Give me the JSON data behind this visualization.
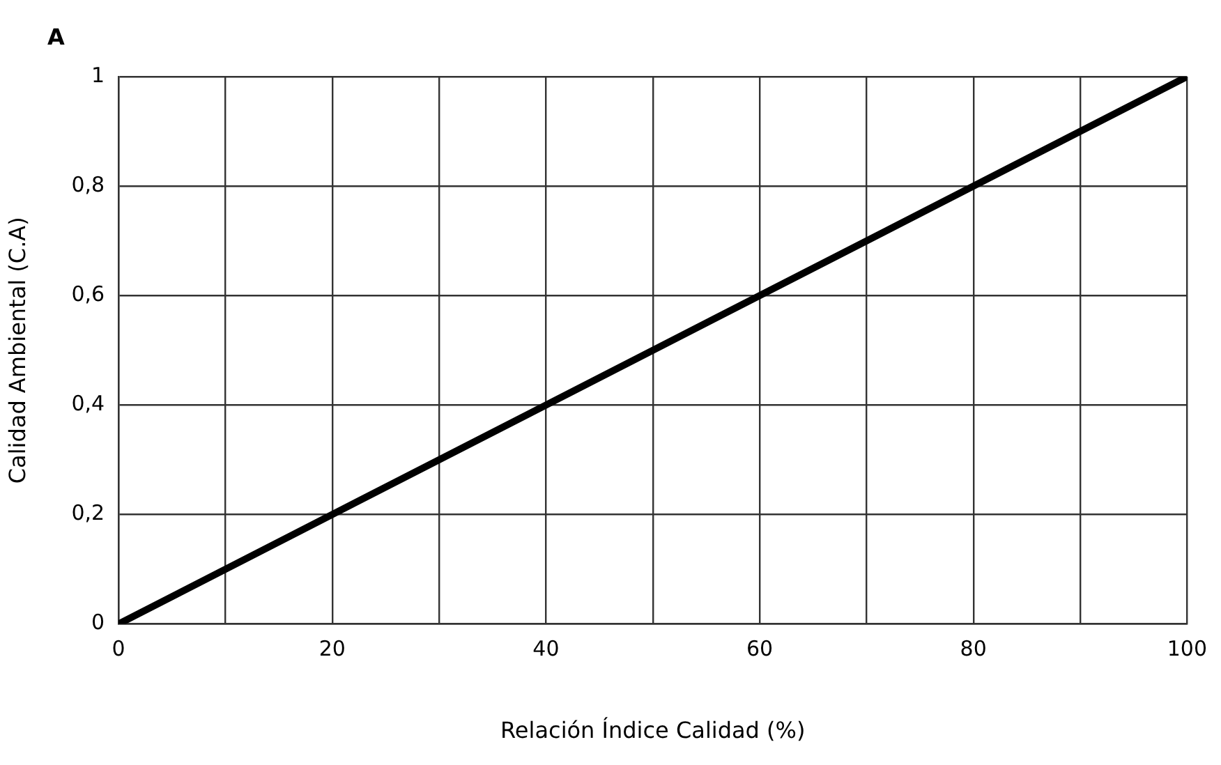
{
  "chart_data": {
    "type": "line",
    "xlabel": "Relación Índice Calidad (%)",
    "ylabel": "Calidad Ambiental (C.A)",
    "annotations": [
      "A"
    ],
    "x": [
      0,
      100
    ],
    "series": [
      {
        "color": "#000000",
        "values": [
          0,
          1
        ]
      }
    ],
    "xlim": [
      0,
      100
    ],
    "xticks": [
      0,
      {
        "value": 10,
        "label": null
      },
      20,
      {
        "value": 30,
        "label": null
      },
      40,
      {
        "value": 50,
        "label": null
      },
      60,
      {
        "value": 70,
        "label": null
      },
      80,
      {
        "value": 90,
        "label": null
      },
      100
    ],
    "ylim": [
      0,
      1
    ],
    "yticks": [
      0,
      {
        "value": 0.2,
        "label": "0,2"
      },
      {
        "value": 0.4,
        "label": "0,4"
      },
      {
        "value": 0.6,
        "label": "0,6"
      },
      {
        "value": 0.8,
        "label": "0,8"
      },
      1
    ],
    "grid": true,
    "legend": false,
    "marker": "none",
    "line_style": "solid"
  }
}
